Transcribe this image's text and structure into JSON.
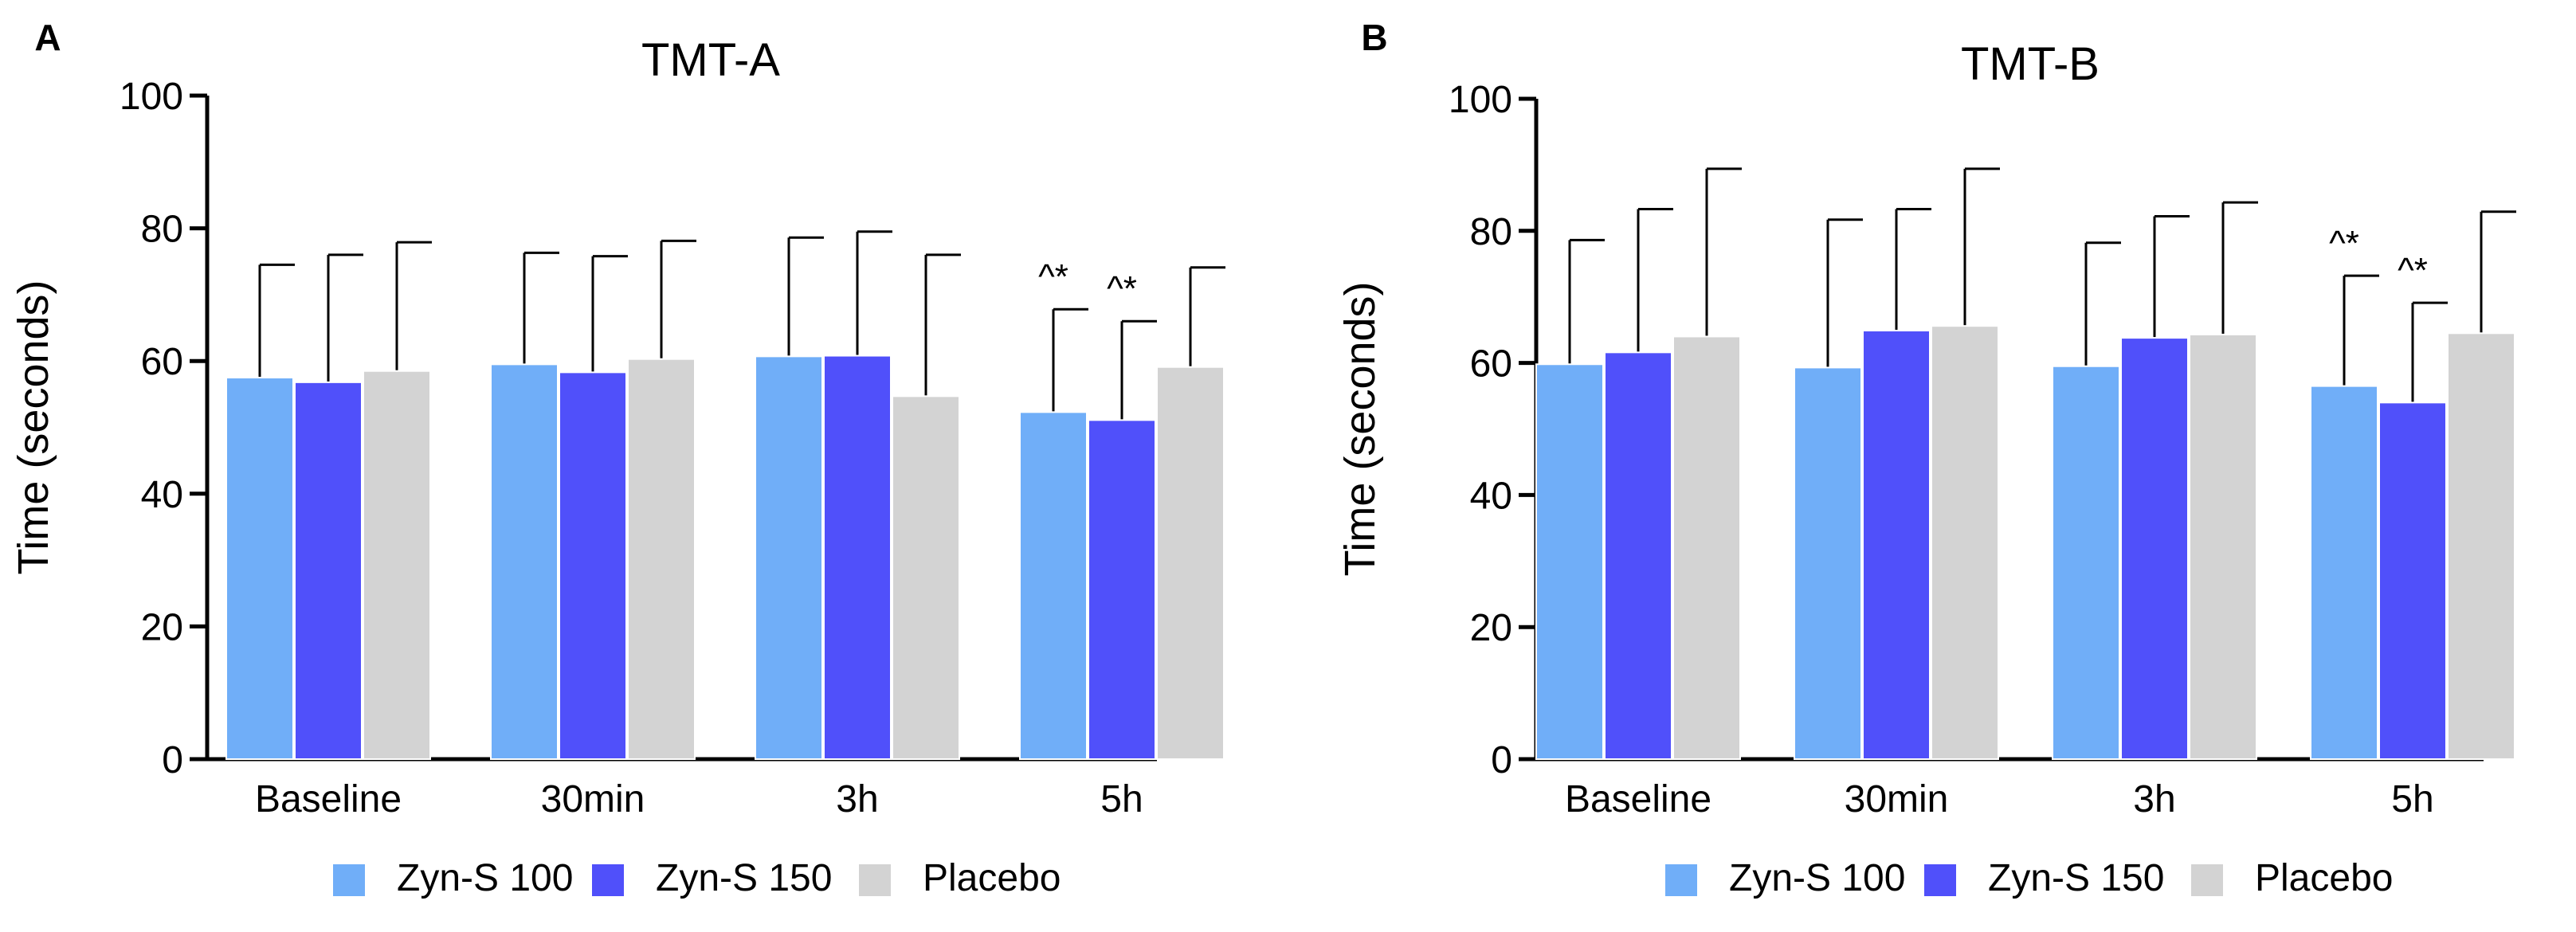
{
  "chart_data": [
    {
      "type": "bar",
      "panel_label": "A",
      "title": "TMT-A",
      "xlabel": "",
      "ylabel": "Time (seconds)",
      "ylim": [
        0,
        100
      ],
      "yticks": [
        "0",
        "20",
        "40",
        "60",
        "80",
        "100"
      ],
      "grid": false,
      "categories": [
        "Baseline",
        "30min",
        "3h",
        "5h"
      ],
      "series": [
        {
          "name": "Zyn-S 100",
          "color": "#70AEF8",
          "values": [
            57.5,
            59.5,
            60.7,
            52.3
          ],
          "errors": [
            17.0,
            16.8,
            17.9,
            15.5
          ]
        },
        {
          "name": "Zyn-S 150",
          "color": "#5050FA",
          "values": [
            56.8,
            58.3,
            60.8,
            51.1
          ],
          "errors": [
            19.2,
            17.5,
            18.7,
            14.9
          ]
        },
        {
          "name": "Placebo",
          "color": "#D3D3D3",
          "values": [
            58.5,
            60.3,
            54.7,
            59.1
          ],
          "errors": [
            19.4,
            17.8,
            21.3,
            15.0
          ]
        }
      ],
      "annotations": [
        {
          "text": "^*",
          "category": "5h",
          "series": "Zyn-S 100"
        },
        {
          "text": "^*",
          "category": "5h",
          "series": "Zyn-S 150"
        }
      ],
      "legend": "bottom"
    },
    {
      "type": "bar",
      "panel_label": "B",
      "title": "TMT-B",
      "xlabel": "",
      "ylabel": "Time (seconds)",
      "ylim": [
        0,
        100
      ],
      "yticks": [
        "0",
        "20",
        "40",
        "60",
        "80",
        "100"
      ],
      "grid": false,
      "categories": [
        "Baseline",
        "30min",
        "3h",
        "5h"
      ],
      "series": [
        {
          "name": "Zyn-S 100",
          "color": "#70AEF8",
          "values": [
            59.8,
            59.3,
            59.5,
            56.5
          ],
          "errors": [
            18.8,
            22.4,
            18.7,
            16.7
          ]
        },
        {
          "name": "Zyn-S 150",
          "color": "#5050FA",
          "values": [
            61.6,
            64.9,
            63.8,
            54.0
          ],
          "errors": [
            21.7,
            18.4,
            18.4,
            15.1
          ]
        },
        {
          "name": "Placebo",
          "color": "#D3D3D3",
          "values": [
            64.0,
            65.6,
            64.3,
            64.5
          ],
          "errors": [
            25.4,
            23.8,
            20.0,
            18.4
          ]
        }
      ],
      "annotations": [
        {
          "text": "^*",
          "category": "5h",
          "series": "Zyn-S 100"
        },
        {
          "text": "^*",
          "category": "5h",
          "series": "Zyn-S 150"
        }
      ],
      "legend": "bottom"
    }
  ]
}
